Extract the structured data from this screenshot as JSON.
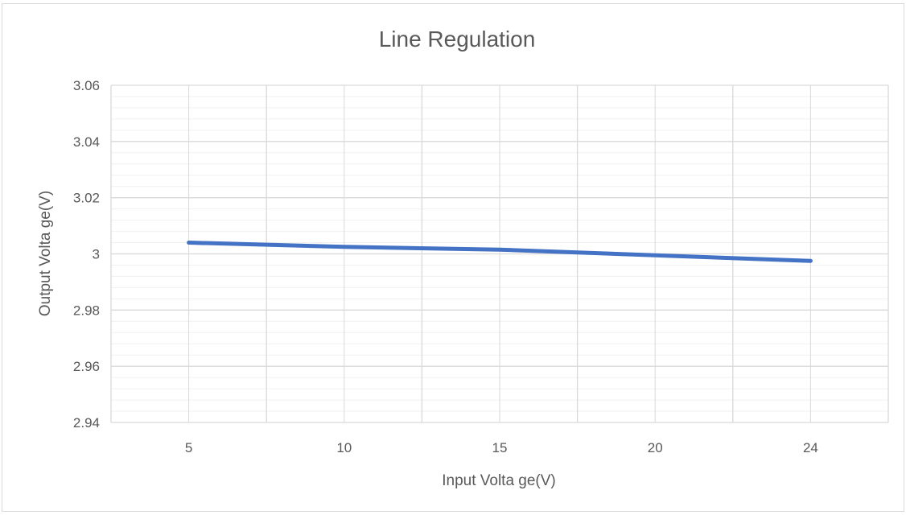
{
  "chart_data": {
    "type": "line",
    "title": "Line Regulation",
    "xlabel": "Input Volta ge(V)",
    "ylabel": "Output Volta ge(V)",
    "categories": [
      "5",
      "10",
      "15",
      "20",
      "24"
    ],
    "series": [
      {
        "values": [
          3.004,
          3.0025,
          3.0015,
          2.9995,
          2.9975
        ]
      }
    ],
    "ylim": [
      2.94,
      3.06
    ],
    "y_ticks": [
      "3.06",
      "3.04",
      "3.02",
      "3",
      "2.98",
      "2.96",
      "2.94"
    ],
    "y_tick_values": [
      3.06,
      3.04,
      3.02,
      3.0,
      2.98,
      2.96,
      2.94
    ],
    "grid": true,
    "line_color": "#4472c4",
    "major_grid_color": "#d9d9d9",
    "minor_grid_color": "#f0f0f0"
  }
}
